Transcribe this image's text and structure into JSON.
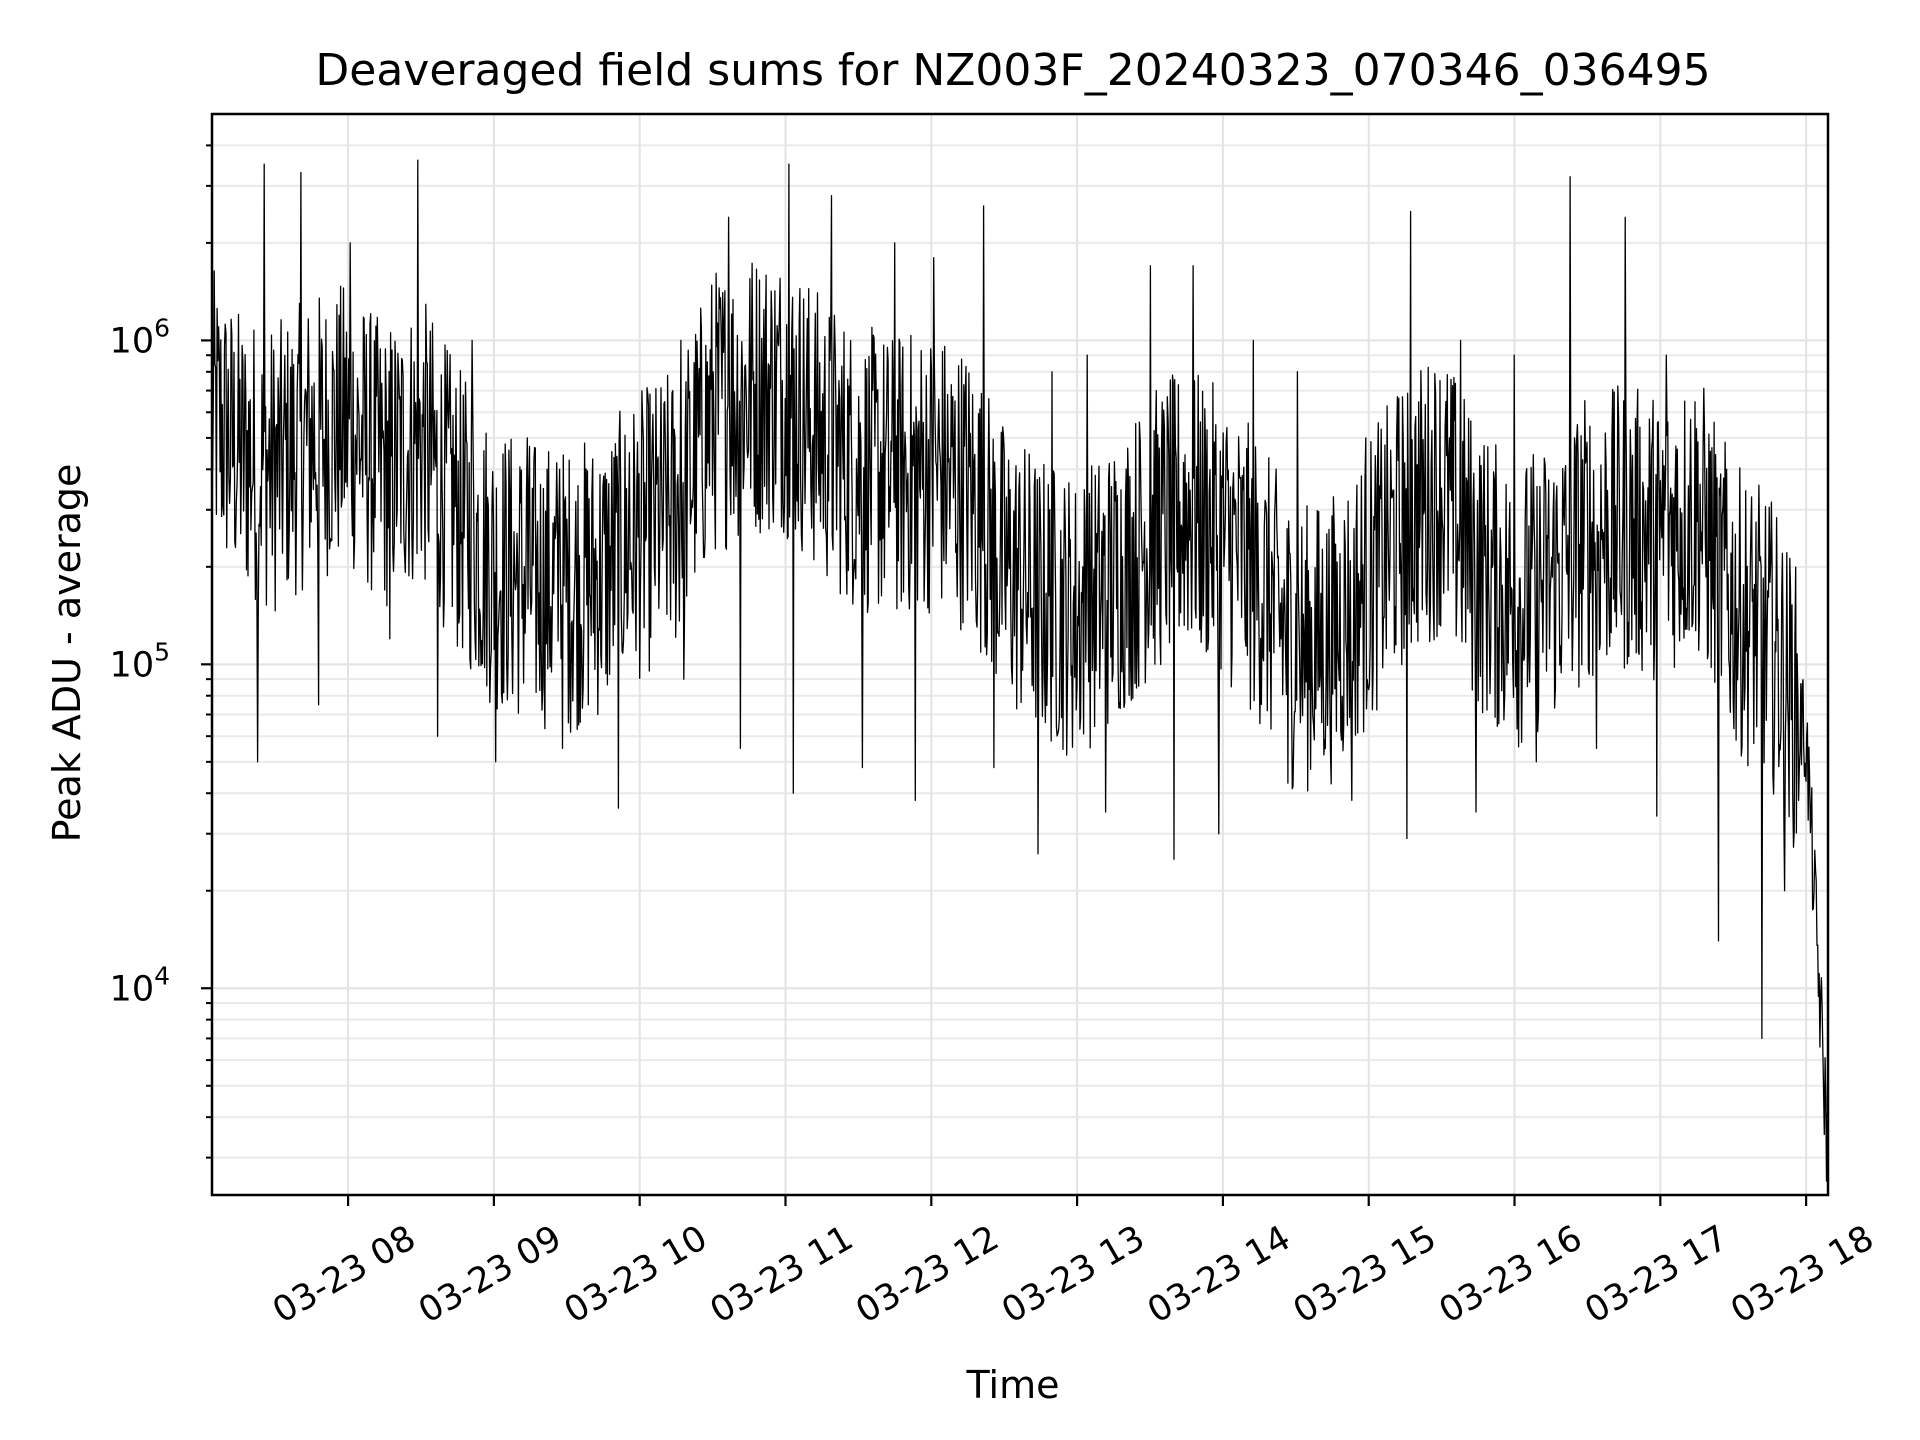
{
  "chart_data": {
    "type": "line",
    "title": "Deaveraged field sums for NZ003F_20240323_070346_036495",
    "xlabel": "Time",
    "ylabel": "Peak ADU - average",
    "yscale": "log",
    "ylim": [
      2300,
      5000000
    ],
    "xlim": [
      "2024-03-23 07:04",
      "2024-03-23 18:09"
    ],
    "x_ticks": [
      {
        "time": "2024-03-23 08:00",
        "label": "03-23 08"
      },
      {
        "time": "2024-03-23 09:00",
        "label": "03-23 09"
      },
      {
        "time": "2024-03-23 10:00",
        "label": "03-23 10"
      },
      {
        "time": "2024-03-23 11:00",
        "label": "03-23 11"
      },
      {
        "time": "2024-03-23 12:00",
        "label": "03-23 12"
      },
      {
        "time": "2024-03-23 13:00",
        "label": "03-23 13"
      },
      {
        "time": "2024-03-23 14:00",
        "label": "03-23 14"
      },
      {
        "time": "2024-03-23 15:00",
        "label": "03-23 15"
      },
      {
        "time": "2024-03-23 16:00",
        "label": "03-23 16"
      },
      {
        "time": "2024-03-23 17:00",
        "label": "03-23 17"
      },
      {
        "time": "2024-03-23 18:00",
        "label": "03-23 18"
      }
    ],
    "y_ticks": [
      {
        "value": 10000,
        "base": "10",
        "exp": "4"
      },
      {
        "value": 100000,
        "base": "10",
        "exp": "5"
      },
      {
        "value": 1000000,
        "base": "10",
        "exp": "6"
      }
    ],
    "grid": true,
    "line_color": "#000000",
    "series": [
      {
        "x": [
          "2024-03-23 07:04",
          "2024-03-23 07:15",
          "2024-03-23 07:30",
          "2024-03-23 07:45",
          "2024-03-23 08:00",
          "2024-03-23 08:15",
          "2024-03-23 08:30",
          "2024-03-23 08:45",
          "2024-03-23 09:00",
          "2024-03-23 09:15",
          "2024-03-23 09:30",
          "2024-03-23 09:45",
          "2024-03-23 10:00",
          "2024-03-23 10:15",
          "2024-03-23 10:30",
          "2024-03-23 10:45",
          "2024-03-23 11:00",
          "2024-03-23 11:15",
          "2024-03-23 11:30",
          "2024-03-23 11:45",
          "2024-03-23 12:00",
          "2024-03-23 12:15",
          "2024-03-23 12:30",
          "2024-03-23 12:45",
          "2024-03-23 13:00",
          "2024-03-23 13:15",
          "2024-03-23 13:30",
          "2024-03-23 13:45",
          "2024-03-23 14:00",
          "2024-03-23 14:15",
          "2024-03-23 14:30",
          "2024-03-23 14:45",
          "2024-03-23 15:00",
          "2024-03-23 15:15",
          "2024-03-23 15:30",
          "2024-03-23 15:45",
          "2024-03-23 16:00",
          "2024-03-23 16:15",
          "2024-03-23 16:30",
          "2024-03-23 16:45",
          "2024-03-23 17:00",
          "2024-03-23 17:15",
          "2024-03-23 17:30",
          "2024-03-23 17:45",
          "2024-03-23 18:00",
          "2024-03-23 18:09"
        ],
        "y": [
          600000,
          450000,
          400000,
          500000,
          550000,
          400000,
          500000,
          300000,
          200000,
          180000,
          170000,
          190000,
          250000,
          300000,
          600000,
          700000,
          700000,
          500000,
          400000,
          380000,
          400000,
          350000,
          200000,
          160000,
          140000,
          180000,
          250000,
          300000,
          250000,
          180000,
          110000,
          120000,
          180000,
          280000,
          350000,
          200000,
          150000,
          180000,
          250000,
          260000,
          250000,
          300000,
          150000,
          120000,
          60000,
          3000
        ],
        "spikes_max": [
          3500000,
          3300000,
          2000000,
          3600000,
          1000000,
          500000,
          400000,
          450000,
          1000000,
          2400000,
          3500000,
          2800000,
          2000000,
          1800000,
          2600000,
          800000,
          900000,
          1700000,
          1700000,
          1000000,
          800000,
          500000,
          2500000,
          1000000,
          900000,
          3200000,
          2400000,
          900000,
          400000,
          20000
        ],
        "spikes_min": [
          50000,
          75000,
          120000,
          60000,
          50000,
          55000,
          36000,
          90000,
          55000,
          40000,
          48000,
          38000,
          48000,
          26000,
          35000,
          25000,
          30000,
          43000,
          38000,
          29000,
          35000,
          50000,
          55000,
          34000,
          14000,
          7000
        ]
      }
    ]
  }
}
